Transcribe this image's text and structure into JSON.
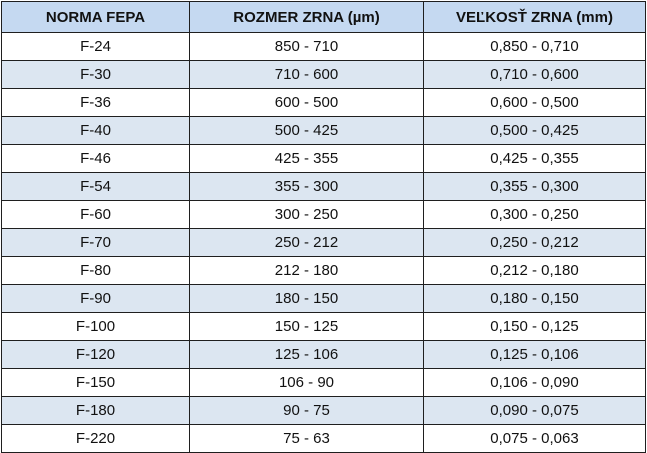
{
  "table": {
    "headers": [
      "NORMA FEPA",
      "ROZMER ZRNA (µm)",
      "VEĽKOSŤ ZRNA (mm)"
    ],
    "rows": [
      [
        "F-24",
        "850 - 710",
        "0,850 - 0,710"
      ],
      [
        "F-30",
        "710 - 600",
        "0,710 - 0,600"
      ],
      [
        "F-36",
        "600 - 500",
        "0,600 - 0,500"
      ],
      [
        "F-40",
        "500 - 425",
        "0,500 - 0,425"
      ],
      [
        "F-46",
        "425 - 355",
        "0,425 - 0,355"
      ],
      [
        "F-54",
        "355 - 300",
        "0,355 - 0,300"
      ],
      [
        "F-60",
        "300 - 250",
        "0,300 - 0,250"
      ],
      [
        "F-70",
        "250 - 212",
        "0,250 - 0,212"
      ],
      [
        "F-80",
        "212 - 180",
        "0,212 - 0,180"
      ],
      [
        "F-90",
        "180 - 150",
        "0,180 - 0,150"
      ],
      [
        "F-100",
        "150 - 125",
        "0,150 - 0,125"
      ],
      [
        "F-120",
        "125 - 106",
        "0,125 - 0,106"
      ],
      [
        "F-150",
        "106 - 90",
        "0,106 - 0,090"
      ],
      [
        "F-180",
        "90 - 75",
        "0,090 - 0,075"
      ],
      [
        "F-220",
        "75 - 63",
        "0,075 - 0,063"
      ]
    ]
  },
  "colors": {
    "header_bg": "#c5d9f1",
    "stripe_bg": "#dce6f1",
    "plain_bg": "#ffffff",
    "border": "#1f1f1f"
  }
}
